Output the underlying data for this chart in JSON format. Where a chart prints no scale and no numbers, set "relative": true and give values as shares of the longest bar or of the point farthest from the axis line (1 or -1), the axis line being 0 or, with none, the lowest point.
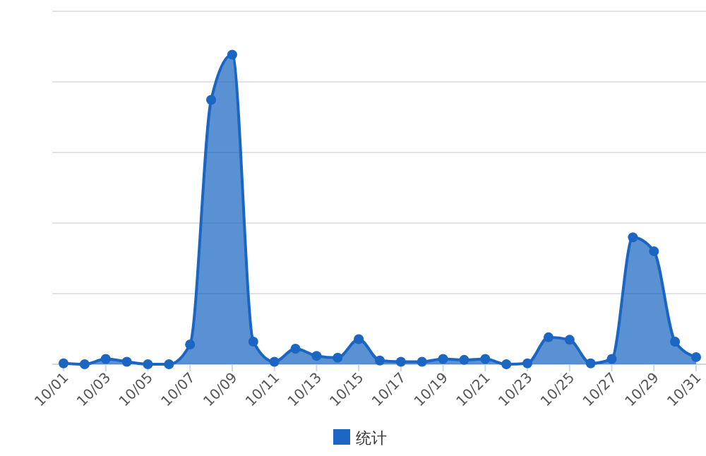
{
  "chart_data": {
    "type": "area",
    "relative": true,
    "grid": "y",
    "legend": "bottom",
    "marker": "circle",
    "categories": [
      "10/01",
      null,
      "10/03",
      null,
      "10/05",
      null,
      "10/07",
      null,
      "10/09",
      null,
      "10/11",
      null,
      "10/13",
      null,
      "10/15",
      null,
      "10/17",
      null,
      "10/19",
      null,
      "10/21",
      null,
      "10/23",
      null,
      "10/25",
      null,
      "10/27",
      null,
      "10/29",
      null,
      "10/31"
    ],
    "series": [
      {
        "name": "统计",
        "color": "#1a66c2",
        "values": [
          0.003,
          0,
          0.017,
          0.008,
          0,
          0,
          0.064,
          0.854,
          1,
          0.073,
          0.008,
          0.05,
          0.027,
          0.021,
          0.081,
          0.012,
          0.008,
          0.008,
          0.017,
          0.014,
          0.017,
          0,
          0.003,
          0.087,
          0.079,
          0.003,
          0.017,
          0.41,
          0.365,
          0.073,
          0.023
        ]
      }
    ]
  }
}
